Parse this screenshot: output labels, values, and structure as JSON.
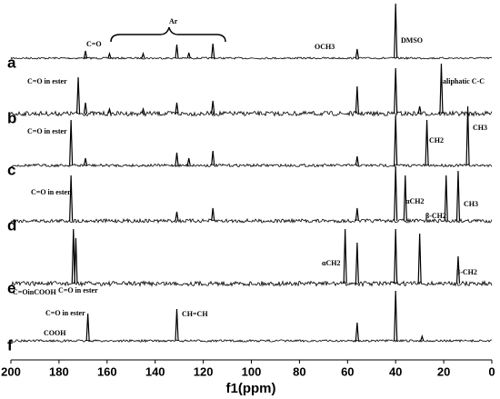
{
  "chart_data": {
    "type": "spectra",
    "xlabel": "f1(ppm)",
    "xlim": [
      200,
      0
    ],
    "xticks": [
      200,
      180,
      160,
      140,
      120,
      100,
      80,
      60,
      40,
      20,
      0
    ],
    "color": "#000000",
    "series": [
      {
        "name": "a",
        "peaks": [
          {
            "ppm": 169,
            "height": 8
          },
          {
            "ppm": 159,
            "height": 5
          },
          {
            "ppm": 145,
            "height": 5
          },
          {
            "ppm": 131,
            "height": 15
          },
          {
            "ppm": 126,
            "height": 6
          },
          {
            "ppm": 116,
            "height": 16
          },
          {
            "ppm": 56,
            "height": 10
          },
          {
            "ppm": 40,
            "height": 60
          }
        ],
        "annotations": [
          "C=O",
          "Ar",
          "OCH3",
          "DMSO"
        ]
      },
      {
        "name": "b",
        "peaks": [
          {
            "ppm": 172,
            "height": 40
          },
          {
            "ppm": 169,
            "height": 12
          },
          {
            "ppm": 159,
            "height": 5
          },
          {
            "ppm": 145,
            "height": 5
          },
          {
            "ppm": 131,
            "height": 12
          },
          {
            "ppm": 116,
            "height": 14
          },
          {
            "ppm": 56,
            "height": 30
          },
          {
            "ppm": 40,
            "height": 50
          },
          {
            "ppm": 30,
            "height": 8
          },
          {
            "ppm": 21,
            "height": 55
          }
        ],
        "annotations": [
          "C=O in ester",
          "aliphatic C-C"
        ]
      },
      {
        "name": "c",
        "peaks": [
          {
            "ppm": 175,
            "height": 50
          },
          {
            "ppm": 169,
            "height": 8
          },
          {
            "ppm": 131,
            "height": 14
          },
          {
            "ppm": 126,
            "height": 8
          },
          {
            "ppm": 116,
            "height": 16
          },
          {
            "ppm": 56,
            "height": 10
          },
          {
            "ppm": 40,
            "height": 55
          },
          {
            "ppm": 27,
            "height": 50
          },
          {
            "ppm": 10,
            "height": 65
          }
        ],
        "annotations": [
          "C=O in ester",
          "CH2",
          "CH3"
        ]
      },
      {
        "name": "d",
        "peaks": [
          {
            "ppm": 175,
            "height": 50
          },
          {
            "ppm": 131,
            "height": 10
          },
          {
            "ppm": 116,
            "height": 14
          },
          {
            "ppm": 56,
            "height": 14
          },
          {
            "ppm": 40,
            "height": 60
          },
          {
            "ppm": 36,
            "height": 50
          },
          {
            "ppm": 19,
            "height": 50
          },
          {
            "ppm": 14,
            "height": 55
          }
        ],
        "annotations": [
          "C=O in ester",
          "αCH2",
          "β-CH2",
          "CH3"
        ]
      },
      {
        "name": "e",
        "peaks": [
          {
            "ppm": 174,
            "height": 60
          },
          {
            "ppm": 173,
            "height": 50
          },
          {
            "ppm": 61,
            "height": 60
          },
          {
            "ppm": 56,
            "height": 45
          },
          {
            "ppm": 40,
            "height": 60
          },
          {
            "ppm": 30,
            "height": 55
          },
          {
            "ppm": 14,
            "height": 30
          }
        ],
        "annotations": [
          "C=OinCOOH",
          "C=O in ester",
          "αCH2",
          "β-CH2"
        ]
      },
      {
        "name": "f",
        "peaks": [
          {
            "ppm": 168,
            "height": 30
          },
          {
            "ppm": 131,
            "height": 35
          },
          {
            "ppm": 56,
            "height": 20
          },
          {
            "ppm": 40,
            "height": 55
          },
          {
            "ppm": 29,
            "height": 5
          }
        ],
        "annotations": [
          "C=O in ester",
          "COOH",
          "CH=CH"
        ]
      }
    ]
  }
}
